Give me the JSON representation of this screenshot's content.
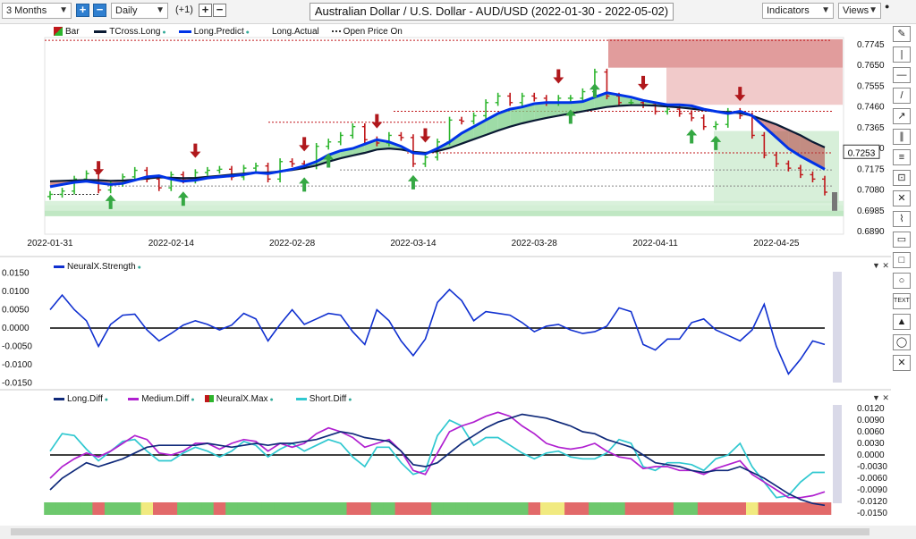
{
  "toolbar": {
    "period": "3 Months",
    "interval": "Daily",
    "offset": "(+1)",
    "title": "Australian Dollar / U.S. Dollar - AUD/USD (2022-01-30 - 2022-05-02)",
    "indicators": "Indicators",
    "views": "Views"
  },
  "legend_main": {
    "bar": "Bar",
    "tcross": "TCross.Long",
    "predict": "Long.Predict",
    "actual": "Long.Actual",
    "open": "Open Price On"
  },
  "legend_strength": {
    "label": "NeuralX.Strength"
  },
  "legend_diff": {
    "long": "Long.Diff",
    "medium": "Medium.Diff",
    "max": "NeuralX.Max",
    "short": "Short.Diff"
  },
  "price_label": "0.7253",
  "sidebar_icons": [
    "pencil-icon",
    "vertical-line-icon",
    "horizontal-line-icon",
    "trend-line-icon",
    "ray-icon",
    "channel-icon",
    "fibonacci-icon",
    "measure-icon",
    "cross-icon",
    "brush-icon",
    "callout-icon",
    "rectangle-icon",
    "ellipse-icon",
    "text-icon",
    "triangle-icon",
    "circle-icon",
    "delete-icon"
  ],
  "sidebar_labels": [
    "✎",
    "|",
    "—",
    "/",
    "↗",
    "∥",
    "≡",
    "⊡",
    "✕",
    "⌇",
    "▭",
    "□",
    "○",
    "TEXT",
    "▲",
    "◯",
    "✕"
  ],
  "colors": {
    "bar_up": "#2db52d",
    "bar_down": "#c0171a",
    "predict": "#0033e6",
    "tcross": "#0a1a33",
    "green_fill": "#7dd08a",
    "red_fill": "#b33b3b",
    "zero_line": "#000000",
    "strength": "#1030d0",
    "long_diff": "#102a7a",
    "medium_diff": "#b020d0",
    "short_diff": "#30c8d0"
  },
  "chart_data": [
    {
      "type": "line",
      "title": "Australian Dollar / U.S. Dollar - AUD/USD (2022-01-30 - 2022-05-02)",
      "x": [
        "2022-01-31",
        "2022-02-01",
        "2022-02-02",
        "2022-02-03",
        "2022-02-04",
        "2022-02-07",
        "2022-02-08",
        "2022-02-09",
        "2022-02-10",
        "2022-02-11",
        "2022-02-14",
        "2022-02-15",
        "2022-02-16",
        "2022-02-17",
        "2022-02-18",
        "2022-02-21",
        "2022-02-22",
        "2022-02-23",
        "2022-02-24",
        "2022-02-25",
        "2022-02-28",
        "2022-03-01",
        "2022-03-02",
        "2022-03-03",
        "2022-03-04",
        "2022-03-07",
        "2022-03-08",
        "2022-03-09",
        "2022-03-10",
        "2022-03-11",
        "2022-03-14",
        "2022-03-15",
        "2022-03-16",
        "2022-03-17",
        "2022-03-18",
        "2022-03-21",
        "2022-03-22",
        "2022-03-23",
        "2022-03-24",
        "2022-03-25",
        "2022-03-28",
        "2022-03-29",
        "2022-03-30",
        "2022-03-31",
        "2022-04-01",
        "2022-04-04",
        "2022-04-05",
        "2022-04-06",
        "2022-04-07",
        "2022-04-08",
        "2022-04-11",
        "2022-04-12",
        "2022-04-13",
        "2022-04-14",
        "2022-04-15",
        "2022-04-18",
        "2022-04-19",
        "2022-04-20",
        "2022-04-21",
        "2022-04-22",
        "2022-04-25",
        "2022-04-26",
        "2022-04-27",
        "2022-04-28",
        "2022-04-29"
      ],
      "xticks": [
        "2022-01-31",
        "2022-02-14",
        "2022-02-28",
        "2022-03-14",
        "2022-03-28",
        "2022-04-11",
        "2022-04-25"
      ],
      "yticks": [
        "0.7745",
        "0.7650",
        "0.7555",
        "0.7460",
        "0.7365",
        "0.7270",
        "0.7175",
        "0.7080",
        "0.6985",
        "0.6890"
      ],
      "ylim": [
        0.687,
        0.78
      ],
      "series": [
        {
          "name": "Long.Predict",
          "values": [
            0.7095,
            0.7105,
            0.7115,
            0.712,
            0.7112,
            0.7105,
            0.711,
            0.7125,
            0.714,
            0.7145,
            0.713,
            0.712,
            0.7125,
            0.7135,
            0.714,
            0.7145,
            0.715,
            0.716,
            0.7155,
            0.7165,
            0.7175,
            0.719,
            0.721,
            0.724,
            0.726,
            0.727,
            0.729,
            0.731,
            0.73,
            0.728,
            0.725,
            0.7245,
            0.727,
            0.73,
            0.734,
            0.737,
            0.74,
            0.743,
            0.745,
            0.746,
            0.7475,
            0.748,
            0.748,
            0.748,
            0.7485,
            0.7505,
            0.7525,
            0.7515,
            0.7505,
            0.749,
            0.748,
            0.747,
            0.747,
            0.7465,
            0.745,
            0.744,
            0.743,
            0.744,
            0.742,
            0.737,
            0.732,
            0.727,
            0.7235,
            0.7205,
            0.7175
          ]
        },
        {
          "name": "TCross.Long",
          "values": [
            0.712,
            0.7122,
            0.7124,
            0.7126,
            0.7125,
            0.7122,
            0.7123,
            0.7127,
            0.7133,
            0.7138,
            0.7136,
            0.7134,
            0.7135,
            0.714,
            0.7145,
            0.715,
            0.7155,
            0.716,
            0.716,
            0.7165,
            0.7172,
            0.718,
            0.7192,
            0.721,
            0.7225,
            0.7238,
            0.725,
            0.7265,
            0.727,
            0.7265,
            0.7255,
            0.725,
            0.7258,
            0.7272,
            0.7292,
            0.7312,
            0.7332,
            0.7352,
            0.737,
            0.7385,
            0.7398,
            0.741,
            0.742,
            0.743,
            0.744,
            0.745,
            0.746,
            0.7465,
            0.7468,
            0.7468,
            0.7466,
            0.7462,
            0.7458,
            0.7452,
            0.7446,
            0.744,
            0.7436,
            0.7432,
            0.742,
            0.74,
            0.738,
            0.7355,
            0.733,
            0.73,
            0.7275
          ]
        },
        {
          "name": "Close",
          "values": [
            0.706,
            0.7075,
            0.713,
            0.7155,
            0.708,
            0.711,
            0.714,
            0.717,
            0.713,
            0.709,
            0.715,
            0.7125,
            0.716,
            0.717,
            0.7175,
            0.714,
            0.718,
            0.719,
            0.713,
            0.721,
            0.72,
            0.719,
            0.728,
            0.73,
            0.733,
            0.737,
            0.731,
            0.7295,
            0.733,
            0.732,
            0.72,
            0.723,
            0.73,
            0.74,
            0.7395,
            0.742,
            0.748,
            0.751,
            0.748,
            0.751,
            0.75,
            0.748,
            0.75,
            0.75,
            0.753,
            0.762,
            0.751,
            0.748,
            0.748,
            0.747,
            0.744,
            0.745,
            0.743,
            0.741,
            0.737,
            0.738,
            0.744,
            0.742,
            0.733,
            0.724,
            0.72,
            0.718,
            0.715,
            0.713,
            0.707
          ]
        }
      ],
      "signals_down": [
        "2022-02-04",
        "2022-02-16",
        "2022-03-01",
        "2022-03-09",
        "2022-03-15",
        "2022-03-30",
        "2022-04-08",
        "2022-04-20"
      ],
      "signals_up": [
        "2022-02-07",
        "2022-02-15",
        "2022-03-01",
        "2022-03-03",
        "2022-03-14",
        "2022-03-31",
        "2022-04-04",
        "2022-04-14",
        "2022-04-18"
      ],
      "price_label": "0.7253"
    },
    {
      "type": "line",
      "yticks": [
        "0.0150",
        "0.0100",
        "0.0050",
        "0.0000",
        "-0.0050",
        "-0.0100",
        "-0.0150"
      ],
      "ylim": [
        -0.0165,
        0.0165
      ],
      "series": [
        {
          "name": "NeuralX.Strength",
          "values": [
            0.005,
            0.009,
            0.005,
            0.002,
            -0.005,
            0.001,
            0.0035,
            0.0038,
            -0.0005,
            -0.0035,
            -0.0015,
            0.0008,
            0.002,
            0.001,
            -0.0005,
            0.0008,
            0.004,
            0.0025,
            -0.0035,
            0.001,
            0.005,
            0.001,
            0.0025,
            0.004,
            0.0035,
            -0.001,
            -0.0045,
            0.005,
            0.002,
            -0.0035,
            -0.0075,
            -0.003,
            0.007,
            0.0105,
            0.0075,
            0.002,
            0.0045,
            0.004,
            0.0035,
            0.0015,
            -0.001,
            0.0005,
            0.001,
            -0.0005,
            -0.0015,
            -0.001,
            0.0005,
            0.0055,
            0.0045,
            -0.0045,
            -0.006,
            -0.003,
            -0.003,
            0.0015,
            0.0025,
            -0.0005,
            -0.002,
            -0.0035,
            -0.0005,
            0.0065,
            -0.005,
            -0.0125,
            -0.0085,
            -0.0035,
            -0.0045
          ]
        }
      ]
    },
    {
      "type": "line",
      "yticks": [
        "0.0120",
        "0.0090",
        "0.0060",
        "0.0030",
        "0.0000",
        "-0.0030",
        "-0.0060",
        "-0.0090",
        "-0.0120",
        "-0.0150"
      ],
      "ylim": [
        -0.016,
        0.013
      ],
      "series": [
        {
          "name": "Long.Diff",
          "values": [
            -0.009,
            -0.006,
            -0.004,
            -0.002,
            -0.003,
            -0.002,
            -0.001,
            0.0005,
            0.002,
            0.0025,
            0.0025,
            0.0025,
            0.0025,
            0.003,
            0.0025,
            0.002,
            0.0025,
            0.003,
            0.0025,
            0.003,
            0.003,
            0.0035,
            0.004,
            0.005,
            0.006,
            0.0055,
            0.0045,
            0.004,
            0.0035,
            0.001,
            -0.0025,
            -0.003,
            -0.002,
            0.0005,
            0.003,
            0.005,
            0.007,
            0.0085,
            0.0095,
            0.0105,
            0.01,
            0.0095,
            0.0085,
            0.0075,
            0.006,
            0.0055,
            0.004,
            0.003,
            0.002,
            0.0,
            -0.002,
            -0.0025,
            -0.003,
            -0.004,
            -0.0045,
            -0.004,
            -0.004,
            -0.003,
            -0.0045,
            -0.006,
            -0.008,
            -0.01,
            -0.0115,
            -0.0125,
            -0.013
          ]
        },
        {
          "name": "Medium.Diff",
          "values": [
            -0.006,
            -0.003,
            -0.001,
            0.0005,
            -0.0005,
            0.001,
            0.003,
            0.005,
            0.004,
            0.0005,
            0.0,
            0.001,
            0.003,
            0.003,
            0.0015,
            0.003,
            0.004,
            0.0035,
            0.001,
            0.003,
            0.002,
            0.003,
            0.0055,
            0.007,
            0.006,
            0.0045,
            0.002,
            0.003,
            0.004,
            0.001,
            -0.004,
            -0.005,
            0.0005,
            0.006,
            0.0075,
            0.0085,
            0.01,
            0.011,
            0.01,
            0.0075,
            0.0055,
            0.003,
            0.002,
            0.0015,
            0.002,
            0.003,
            0.001,
            -0.0005,
            -0.001,
            -0.0035,
            -0.003,
            -0.003,
            -0.004,
            -0.004,
            -0.005,
            -0.0035,
            -0.0025,
            -0.0015,
            -0.005,
            -0.007,
            -0.009,
            -0.011,
            -0.011,
            -0.0105,
            -0.0095
          ]
        },
        {
          "name": "Short.Diff",
          "values": [
            0.001,
            0.0055,
            0.005,
            0.0015,
            -0.0015,
            0.001,
            0.0035,
            0.004,
            0.001,
            -0.0015,
            -0.0015,
            0.0005,
            0.002,
            0.001,
            -0.0005,
            0.001,
            0.0035,
            0.0025,
            -0.0005,
            0.0015,
            0.003,
            0.001,
            0.0025,
            0.004,
            0.003,
            -0.0005,
            -0.003,
            0.002,
            0.002,
            -0.002,
            -0.005,
            -0.004,
            0.005,
            0.009,
            0.0075,
            0.0025,
            0.0045,
            0.0045,
            0.0025,
            0.0005,
            -0.001,
            0.0005,
            0.001,
            -0.0005,
            -0.001,
            -0.001,
            0.0005,
            0.004,
            0.003,
            -0.003,
            -0.004,
            -0.002,
            -0.002,
            -0.0025,
            -0.004,
            -0.001,
            0.0,
            0.003,
            -0.003,
            -0.007,
            -0.011,
            -0.0105,
            -0.007,
            -0.0045,
            -0.0045
          ]
        }
      ],
      "neuralx_max": [
        "up",
        "up",
        "up",
        "up",
        "down",
        "up",
        "up",
        "up",
        "neutral",
        "down",
        "down",
        "up",
        "up",
        "up",
        "down",
        "up",
        "up",
        "up",
        "up",
        "up",
        "up",
        "up",
        "up",
        "up",
        "up",
        "down",
        "down",
        "up",
        "up",
        "down",
        "down",
        "down",
        "up",
        "up",
        "up",
        "up",
        "up",
        "up",
        "up",
        "up",
        "down",
        "neutral",
        "neutral",
        "down",
        "down",
        "up",
        "up",
        "up",
        "down",
        "down",
        "down",
        "down",
        "up",
        "up",
        "down",
        "down",
        "down",
        "down",
        "neutral",
        "down",
        "down",
        "down",
        "down",
        "down",
        "down"
      ]
    }
  ]
}
